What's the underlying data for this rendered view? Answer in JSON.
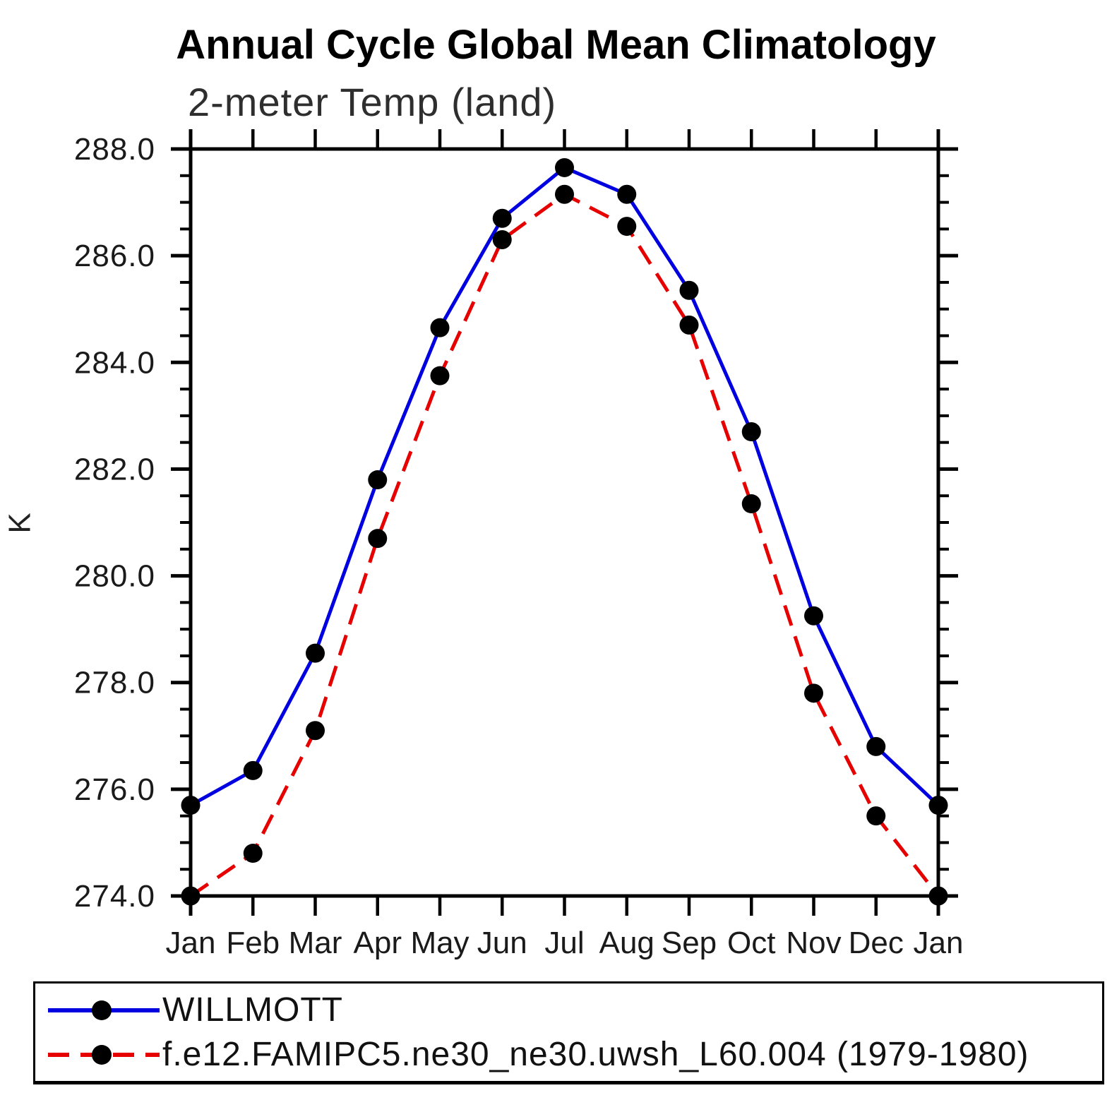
{
  "title": "Annual Cycle Global Mean Climatology",
  "subtitle": "2-meter Temp (land)",
  "y_axis_label": "K",
  "chart_data": {
    "type": "line",
    "title": "Annual Cycle Global Mean Climatology",
    "subtitle": "2-meter Temp (land)",
    "ylabel": "K",
    "categories": [
      "Jan",
      "Feb",
      "Mar",
      "Apr",
      "May",
      "Jun",
      "Jul",
      "Aug",
      "Sep",
      "Oct",
      "Nov",
      "Dec",
      "Jan"
    ],
    "ylim": [
      274.0,
      288.0
    ],
    "y_major_tick_step": 2.0,
    "y_minor_tick_step": 0.5,
    "y_tick_labels": [
      "274.0",
      "276.0",
      "278.0",
      "280.0",
      "282.0",
      "284.0",
      "286.0",
      "288.0"
    ],
    "grid": "off",
    "legend_position": "bottom-box",
    "marker": "filled-black-circle",
    "series": [
      {
        "name": "WILLMOTT",
        "color": "#0000e0",
        "line_style": "solid",
        "values": [
          275.7,
          276.35,
          278.55,
          281.8,
          284.65,
          286.7,
          287.65,
          287.15,
          285.35,
          282.7,
          279.25,
          276.8,
          275.7
        ]
      },
      {
        "name": "f.e12.FAMIPC5.ne30_ne30.uwsh_L60.004 (1979-1980)",
        "color": "#e60000",
        "line_style": "dashed",
        "values": [
          274.0,
          274.8,
          277.1,
          280.7,
          283.75,
          286.3,
          287.15,
          286.55,
          284.7,
          281.35,
          277.8,
          275.5,
          274.0
        ]
      }
    ]
  },
  "legend": {
    "entries": [
      {
        "label": "WILLMOTT"
      },
      {
        "label": "f.e12.FAMIPC5.ne30_ne30.uwsh_L60.004 (1979-1980)"
      }
    ]
  }
}
